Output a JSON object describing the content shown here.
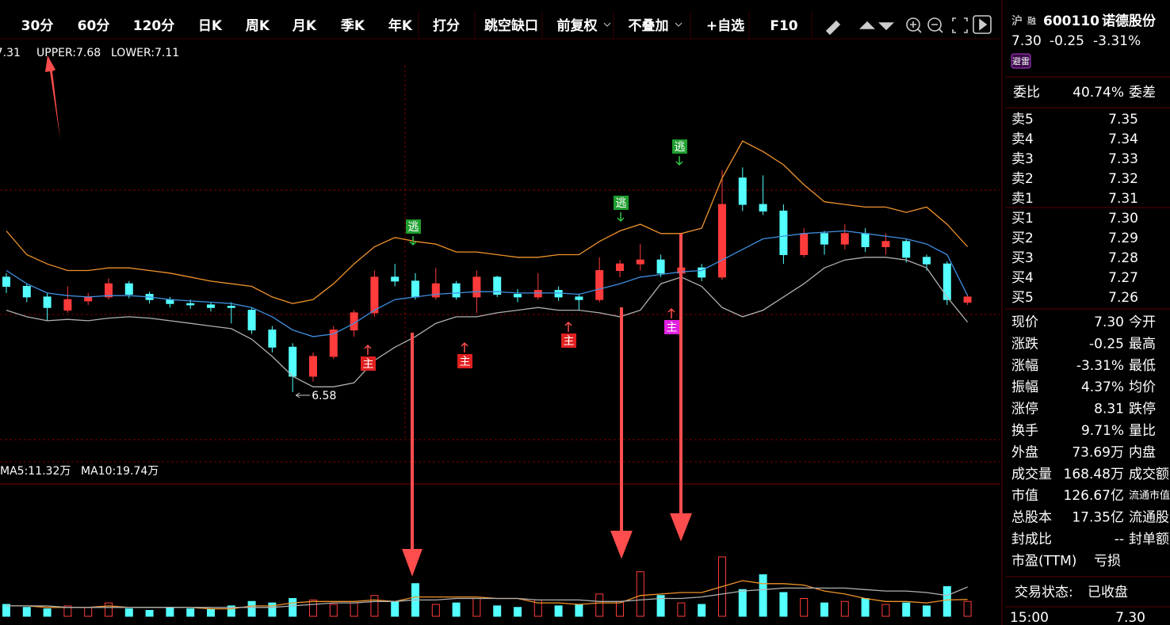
{
  "toolbar": {
    "periods": [
      "30分",
      "60分",
      "120分",
      "日K",
      "周K",
      "月K",
      "季K",
      "年K"
    ],
    "tools": [
      "打分",
      "跳空缺口",
      "前复权",
      "不叠加",
      "+自选",
      "F10"
    ]
  },
  "indicators": {
    "boll": [
      ":7.31",
      "UPPER:7.68",
      "LOWER:7.11"
    ],
    "vol": [
      "MA5:11.32万",
      "MA10:19.74万"
    ]
  },
  "markers": {
    "main": "主",
    "escape": "逃"
  },
  "chart_data": {
    "type": "candlestick",
    "up_color": "#ff3b3b",
    "down_color": "#54ffff",
    "upper_color": "#f0932b",
    "mid_color": "#3e8fe0",
    "lower_color": "#b0b0b0",
    "open": [
      7.45,
      7.38,
      7.3,
      7.2,
      7.27,
      7.3,
      7.4,
      7.32,
      7.28,
      7.25,
      7.24,
      7.23,
      7.2,
      7.05,
      6.92,
      6.7,
      6.85,
      7.05,
      7.18,
      7.45,
      7.42,
      7.3,
      7.4,
      7.3,
      7.45,
      7.32,
      7.3,
      7.35,
      7.3,
      7.28,
      7.5,
      7.55,
      7.58,
      7.48,
      7.52,
      7.45,
      8.2,
      8.0,
      7.95,
      7.62,
      7.78,
      7.7,
      7.78,
      7.68,
      7.72,
      7.6,
      7.55,
      7.26
    ],
    "high": [
      7.48,
      7.4,
      7.33,
      7.38,
      7.33,
      7.44,
      7.42,
      7.34,
      7.3,
      7.28,
      7.26,
      7.26,
      7.22,
      7.08,
      6.95,
      6.88,
      7.08,
      7.2,
      7.5,
      7.55,
      7.48,
      7.52,
      7.42,
      7.5,
      7.46,
      7.36,
      7.48,
      7.38,
      7.32,
      7.6,
      7.58,
      7.7,
      7.62,
      7.56,
      7.55,
      8.26,
      8.28,
      8.22,
      8.0,
      7.82,
      7.8,
      7.85,
      7.82,
      7.78,
      7.74,
      7.62,
      7.57,
      7.32
    ],
    "low": [
      7.33,
      7.26,
      7.12,
      7.18,
      7.24,
      7.28,
      7.29,
      7.25,
      7.22,
      7.21,
      7.19,
      7.1,
      7.02,
      6.88,
      6.58,
      6.66,
      6.83,
      7.0,
      7.15,
      7.38,
      7.28,
      7.28,
      7.28,
      7.18,
      7.3,
      7.26,
      7.28,
      7.27,
      7.2,
      7.26,
      7.45,
      7.5,
      7.45,
      7.44,
      7.42,
      7.43,
      7.95,
      7.92,
      7.55,
      7.6,
      7.62,
      7.66,
      7.64,
      7.62,
      7.56,
      7.5,
      7.24,
      7.24
    ],
    "close": [
      7.38,
      7.3,
      7.22,
      7.28,
      7.3,
      7.4,
      7.32,
      7.28,
      7.25,
      7.24,
      7.22,
      7.22,
      7.05,
      6.92,
      6.7,
      6.85,
      7.05,
      7.18,
      7.45,
      7.42,
      7.3,
      7.4,
      7.3,
      7.45,
      7.32,
      7.3,
      7.35,
      7.3,
      7.28,
      7.5,
      7.55,
      7.58,
      7.48,
      7.52,
      7.45,
      8.0,
      8.0,
      7.95,
      7.62,
      7.78,
      7.7,
      7.78,
      7.68,
      7.72,
      7.6,
      7.55,
      7.28,
      7.3
    ],
    "upper": [
      7.8,
      7.62,
      7.55,
      7.5,
      7.5,
      7.52,
      7.52,
      7.5,
      7.48,
      7.45,
      7.42,
      7.4,
      7.38,
      7.3,
      7.25,
      7.28,
      7.4,
      7.55,
      7.68,
      7.75,
      7.72,
      7.7,
      7.64,
      7.64,
      7.62,
      7.6,
      7.6,
      7.62,
      7.62,
      7.72,
      7.8,
      7.85,
      7.78,
      7.78,
      7.82,
      8.2,
      8.48,
      8.4,
      8.3,
      8.15,
      8.02,
      8.0,
      7.98,
      7.98,
      7.94,
      7.98,
      7.85,
      7.68
    ],
    "mid": [
      7.5,
      7.4,
      7.33,
      7.31,
      7.3,
      7.31,
      7.31,
      7.3,
      7.28,
      7.27,
      7.26,
      7.25,
      7.22,
      7.15,
      7.05,
      7.0,
      7.02,
      7.1,
      7.2,
      7.28,
      7.3,
      7.32,
      7.33,
      7.34,
      7.34,
      7.33,
      7.33,
      7.33,
      7.32,
      7.36,
      7.4,
      7.45,
      7.47,
      7.49,
      7.5,
      7.58,
      7.66,
      7.74,
      7.76,
      7.78,
      7.79,
      7.8,
      7.78,
      7.76,
      7.74,
      7.7,
      7.62,
      7.31
    ],
    "lower": [
      7.2,
      7.15,
      7.12,
      7.13,
      7.12,
      7.14,
      7.15,
      7.14,
      7.12,
      7.1,
      7.08,
      7.06,
      6.98,
      6.85,
      6.7,
      6.62,
      6.62,
      6.65,
      6.82,
      6.92,
      7.0,
      7.1,
      7.15,
      7.15,
      7.18,
      7.2,
      7.22,
      7.2,
      7.2,
      7.18,
      7.15,
      7.2,
      7.4,
      7.45,
      7.38,
      7.22,
      7.15,
      7.2,
      7.3,
      7.4,
      7.52,
      7.58,
      7.6,
      7.6,
      7.58,
      7.52,
      7.3,
      7.11
    ],
    "volume": [
      8,
      6,
      5,
      7,
      6,
      9,
      5,
      4,
      6,
      5,
      5,
      7,
      10,
      9,
      12,
      11,
      8,
      9,
      14,
      10,
      22,
      8,
      9,
      12,
      7,
      6,
      11,
      7,
      8,
      15,
      10,
      30,
      14,
      9,
      8,
      40,
      18,
      28,
      16,
      12,
      9,
      10,
      12,
      8,
      9,
      7,
      20,
      10
    ],
    "volume_ma5": [
      7,
      7,
      6,
      6,
      6,
      7,
      6,
      6,
      6,
      6,
      5,
      5,
      7,
      7,
      9,
      10,
      10,
      10,
      11,
      10,
      13,
      13,
      13,
      13,
      12,
      12,
      9,
      9,
      8,
      9,
      9,
      14,
      15,
      16,
      16,
      20,
      24,
      22,
      22,
      21,
      17,
      15,
      12,
      10,
      10,
      9,
      11,
      11.32
    ],
    "volume_ma10": [
      7,
      7,
      7,
      6,
      6,
      6,
      6,
      6,
      6,
      6,
      6,
      6,
      6,
      6,
      7,
      8,
      9,
      9,
      10,
      10,
      11,
      11,
      12,
      12,
      12,
      12,
      11,
      11,
      11,
      10,
      10,
      11,
      12,
      12,
      13,
      15,
      17,
      18,
      19,
      19,
      19,
      19,
      18,
      17,
      17,
      16,
      14,
      19.74
    ]
  },
  "quote": {
    "exchange": "沪",
    "margin": "融",
    "code": "600110",
    "name": "诺德股份",
    "price": "7.30",
    "change": "-0.25",
    "change_pct": "-3.31%",
    "tag": "避雷"
  },
  "order_ratio": {
    "label": "委比",
    "value": "40.74%",
    "label2": "委差"
  },
  "order_book": [
    {
      "label": "卖5",
      "price": "7.35"
    },
    {
      "label": "卖4",
      "price": "7.34"
    },
    {
      "label": "卖3",
      "price": "7.33"
    },
    {
      "label": "卖2",
      "price": "7.32"
    },
    {
      "label": "卖1",
      "price": "7.31"
    },
    {
      "label": "买1",
      "price": "7.30"
    },
    {
      "label": "买2",
      "price": "7.29"
    },
    {
      "label": "买3",
      "price": "7.28"
    },
    {
      "label": "买4",
      "price": "7.27"
    },
    {
      "label": "买5",
      "price": "7.26"
    }
  ],
  "stats": [
    {
      "label": "现价",
      "value": "7.30",
      "color": "#2fc34a",
      "label2": "今开"
    },
    {
      "label": "涨跌",
      "value": "-0.25",
      "color": "#2fc34a",
      "label2": "最高"
    },
    {
      "label": "涨幅",
      "value": "-3.31%",
      "color": "#2fc34a",
      "label2": "最低"
    },
    {
      "label": "振幅",
      "value": "4.37%",
      "color": "#ffffff",
      "label2": "均价"
    },
    {
      "label": "涨停",
      "value": "8.31",
      "color": "#ff3b3b",
      "label2": "跌停"
    },
    {
      "label": "换手",
      "value": "9.71%",
      "color": "#ffffff",
      "label2": "量比"
    },
    {
      "label": "外盘",
      "value": "73.69万",
      "color": "#ff3b3b",
      "label2": "内盘"
    },
    {
      "label": "成交量",
      "value": "168.48万",
      "color": "#ffffff",
      "label2": "成交额"
    },
    {
      "label": "市值",
      "value": "126.67亿",
      "color": "#ffffff",
      "label2": "流通市值"
    },
    {
      "label": "总股本",
      "value": "17.35亿",
      "color": "#ffffff",
      "label2": "流通股"
    },
    {
      "label": "封成比",
      "value": "--",
      "color": "#ffffff",
      "label2": "封单额"
    },
    {
      "label": "市盈(TTM)",
      "value": "亏损",
      "color": "#ffffff"
    }
  ],
  "status": {
    "label": "交易状态:",
    "value": "已收盘"
  },
  "last_trade": {
    "time": "15:00",
    "price": "7.30"
  }
}
